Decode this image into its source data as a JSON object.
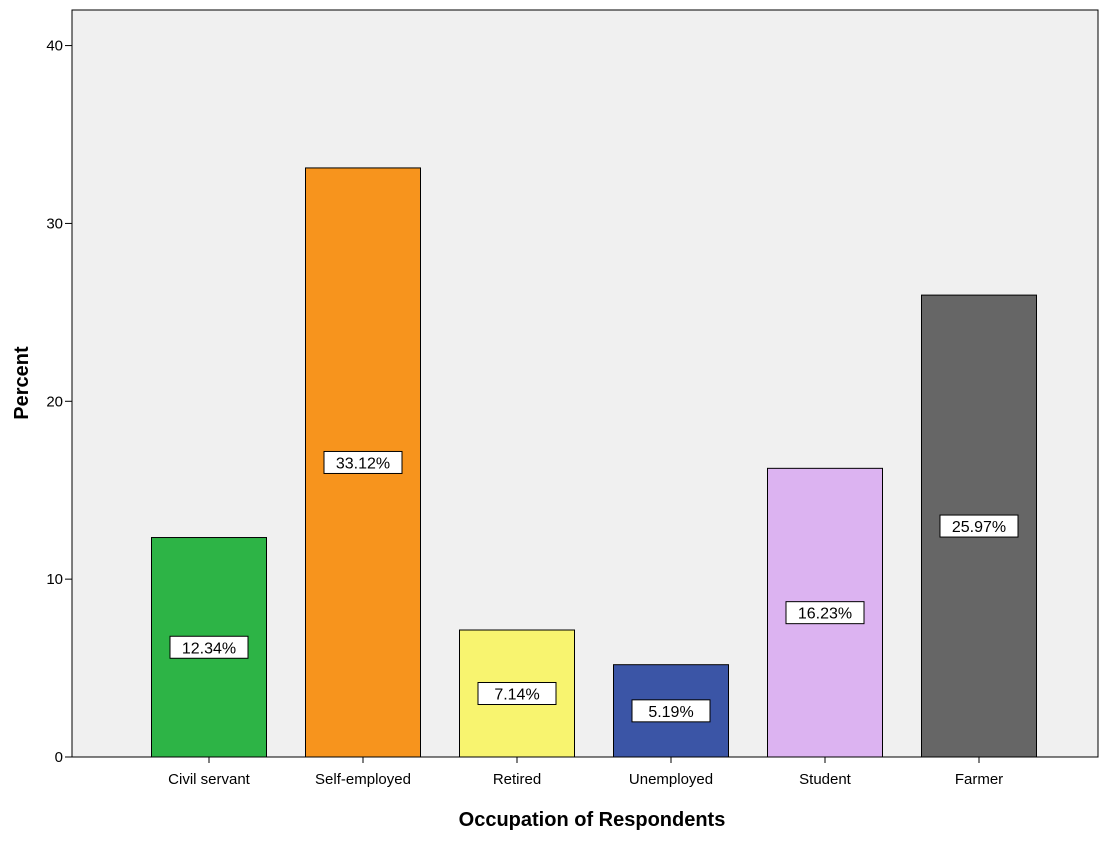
{
  "chart_data": {
    "type": "bar",
    "title": "",
    "xlabel": "Occupation of Respondents",
    "ylabel": "Percent",
    "ylim": [
      0,
      42
    ],
    "yticks": [
      0,
      10,
      20,
      30,
      40
    ],
    "grid": false,
    "categories": [
      "Civil servant",
      "Self-employed",
      "Retired",
      "Unemployed",
      "Student",
      "Farmer"
    ],
    "values": [
      12.34,
      33.12,
      7.14,
      5.19,
      16.23,
      25.97
    ],
    "data_labels": [
      "12.34%",
      "33.12%",
      "7.14%",
      "5.19%",
      "16.23%",
      "25.97%"
    ],
    "colors": [
      "#2db446",
      "#f7941d",
      "#f8f46f",
      "#3b55a6",
      "#dcb3f1",
      "#666666"
    ],
    "plot_background": "#f0f0f0"
  }
}
